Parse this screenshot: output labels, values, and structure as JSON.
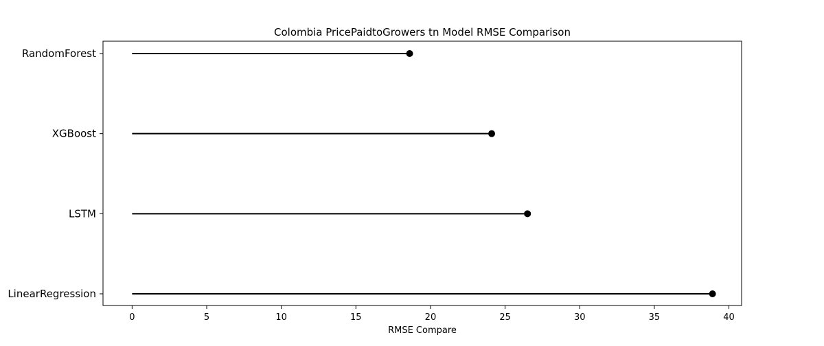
{
  "chart_data": {
    "type": "lollipop",
    "title": "Colombia PricePaidtoGrowers tn Model RMSE Comparison",
    "xlabel": "RMSE Compare",
    "ylabel": "",
    "categories": [
      "RandomForest",
      "XGBoost",
      "LSTM",
      "LinearRegression"
    ],
    "values": [
      18.6,
      24.1,
      26.5,
      38.9
    ],
    "xlim": [
      -1.95,
      40.85
    ],
    "xticks": [
      0,
      5,
      10,
      15,
      20,
      25,
      30,
      35,
      40
    ],
    "grid": false,
    "line_color": "#000000",
    "marker_color": "#000000"
  }
}
